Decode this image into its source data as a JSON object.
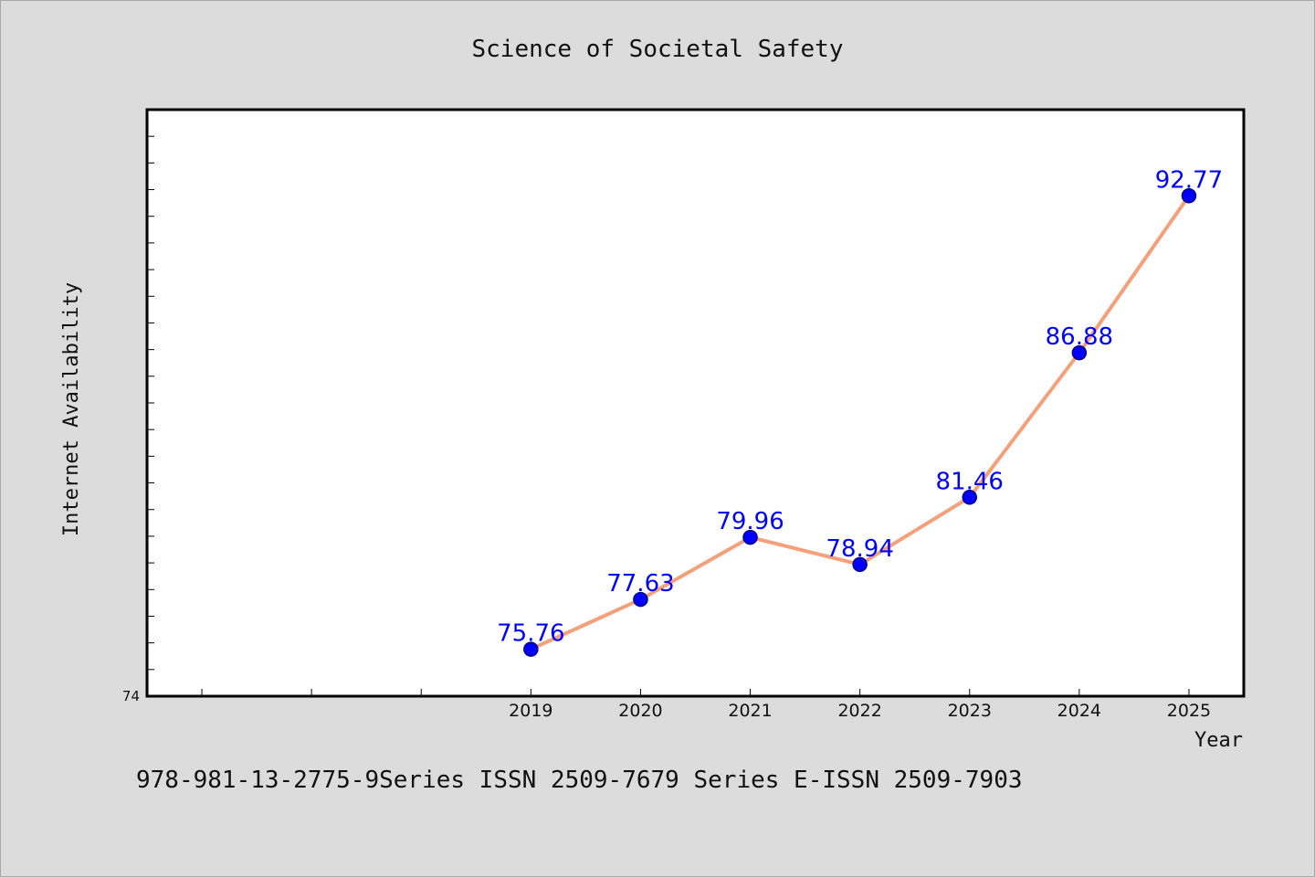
{
  "chart_data": {
    "type": "line",
    "title": "Science of Societal Safety",
    "xlabel": "Year",
    "ylabel": "Internet Availability",
    "categories": [
      "2019",
      "2020",
      "2021",
      "2022",
      "2023",
      "2024",
      "2025"
    ],
    "series": [
      {
        "values": [
          75.76,
          77.63,
          79.96,
          78.94,
          81.46,
          86.88,
          92.77
        ]
      }
    ],
    "data_labels": [
      "75.76",
      "77.63",
      "79.96",
      "78.94",
      "81.46",
      "86.88",
      "92.77"
    ],
    "y_tick_labels": [
      "74"
    ],
    "ylim": [
      74,
      96
    ],
    "xlim": [
      2015.5,
      2025.5
    ],
    "grid": false,
    "legend": "none",
    "colors": {
      "line": "#f4a07a",
      "marker": "#0000ff",
      "marker_edge": "#000080",
      "label": "#0000ff",
      "background": "#dcdcdc",
      "plot_background": "#ffffff"
    }
  },
  "footer": {
    "text": "978-981-13-2775-9Series ISSN 2509-7679 Series E-ISSN 2509-7903"
  }
}
